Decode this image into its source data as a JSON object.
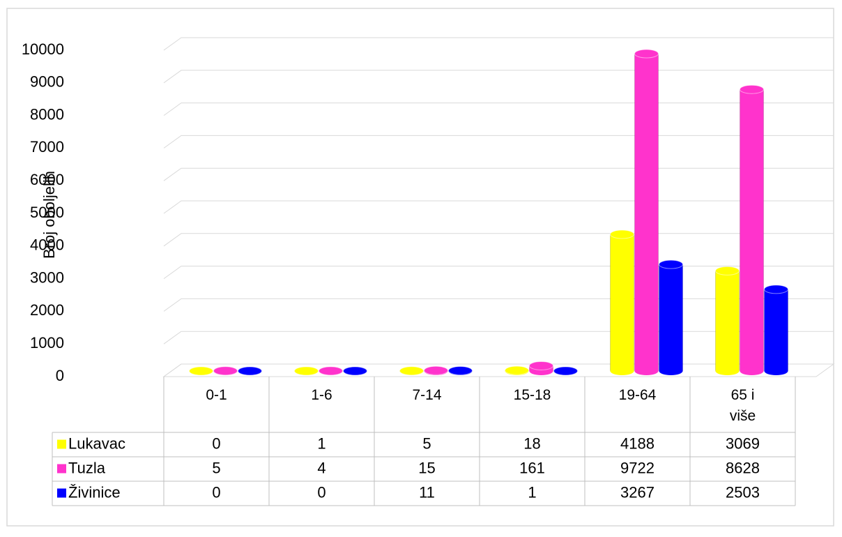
{
  "chart_data": {
    "type": "bar3d",
    "y_axis_label": "Broj oboljelih",
    "categories": [
      "0-1",
      "1-6",
      "7-14",
      "15-18",
      "19-64",
      "65 i više"
    ],
    "series": [
      {
        "name": "Lukavac",
        "color": "#ffff00",
        "values": [
          0,
          1,
          5,
          18,
          4188,
          3069
        ]
      },
      {
        "name": "Tuzla",
        "color": "#ff33cc",
        "values": [
          5,
          4,
          15,
          161,
          9722,
          8628
        ]
      },
      {
        "name": "Živinice",
        "color": "#0000ff",
        "values": [
          0,
          0,
          11,
          1,
          3267,
          2503
        ]
      }
    ],
    "ylim": [
      0,
      10000
    ],
    "yticks": [
      0,
      1000,
      2000,
      3000,
      4000,
      5000,
      6000,
      7000,
      8000,
      9000,
      10000
    ],
    "grid": true
  }
}
